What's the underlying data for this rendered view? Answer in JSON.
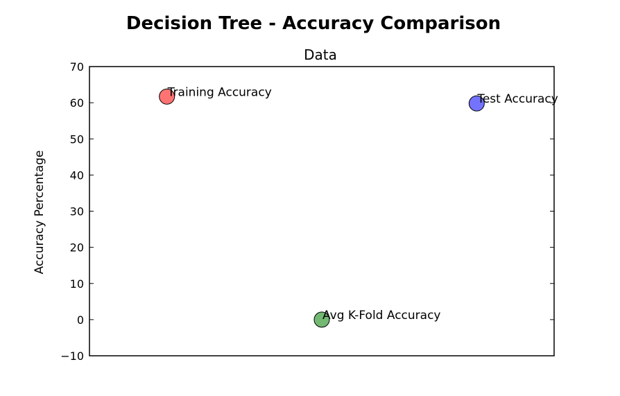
{
  "chart_data": {
    "type": "scatter",
    "title": "Decision Tree - Accuracy Comparison",
    "subtitle": "Data",
    "xlabel": "",
    "ylabel": "Accuracy Percentage",
    "ylim": [
      -10,
      70
    ],
    "yticks": [
      -10,
      0,
      10,
      20,
      30,
      40,
      50,
      60,
      70
    ],
    "xlim": [
      0,
      3
    ],
    "grid": false,
    "points": [
      {
        "label": "Training Accuracy",
        "x": 0.5,
        "y": 61.7,
        "color": "#ff0000"
      },
      {
        "label": "Avg K-Fold Accuracy",
        "x": 1.5,
        "y": 0.0,
        "color": "#008000"
      },
      {
        "label": "Test Accuracy",
        "x": 2.5,
        "y": 59.8,
        "color": "#0000ff"
      }
    ]
  }
}
